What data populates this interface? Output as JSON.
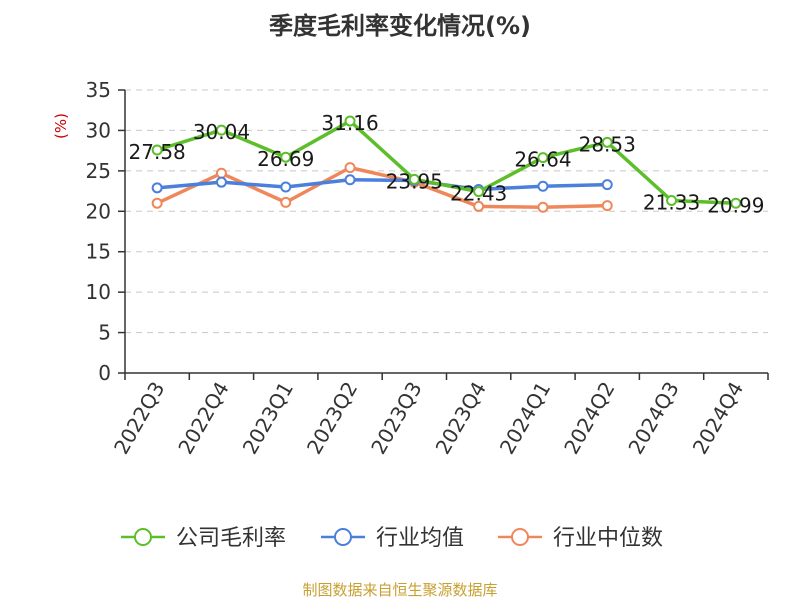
{
  "source": "制图数据来自恒生聚源数据库",
  "chart_data": {
    "type": "line",
    "title": "季度毛利率变化情况(%)",
    "ylabel": "(%)",
    "xlabel": "",
    "ylim": [
      0,
      35
    ],
    "yticks": [
      0,
      5,
      10,
      15,
      20,
      25,
      30,
      35
    ],
    "categories": [
      "2022Q3",
      "2022Q4",
      "2023Q1",
      "2023Q2",
      "2023Q3",
      "2023Q4",
      "2024Q1",
      "2024Q2",
      "2024Q3",
      "2024Q4"
    ],
    "grid": true,
    "legend_position": "bottom",
    "series": [
      {
        "name": "公司毛利率",
        "color": "#5cbf2a",
        "values": [
          27.58,
          30.04,
          26.69,
          31.16,
          23.95,
          22.43,
          26.64,
          28.53,
          21.33,
          20.99
        ],
        "data_labels": [
          "27.58",
          "30.04",
          "26.69",
          "31.16",
          "23.95",
          "22.43",
          "26.64",
          "28.53",
          "21.33",
          "20.99"
        ]
      },
      {
        "name": "行业均值",
        "color": "#4a7fdc",
        "values": [
          22.9,
          23.6,
          23.0,
          23.9,
          23.8,
          22.7,
          23.1,
          23.3,
          null,
          null
        ]
      },
      {
        "name": "行业中位数",
        "color": "#f0875a",
        "values": [
          21.0,
          24.7,
          21.1,
          25.4,
          23.6,
          20.6,
          20.5,
          20.7,
          null,
          null
        ]
      }
    ]
  }
}
